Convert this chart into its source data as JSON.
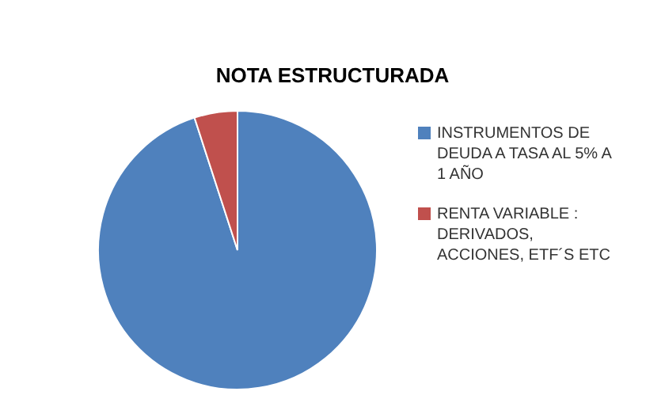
{
  "chart_data": {
    "type": "pie",
    "title": "NOTA ESTRUCTURADA",
    "categories": [
      "INSTRUMENTOS DE DEUDA A TASA AL 5% A 1 AÑO",
      "RENTA VARIABLE : DERIVADOS, ACCIONES, ETF´S ETC"
    ],
    "values": [
      95,
      5
    ],
    "colors": [
      "#4f81bd",
      "#c0504d"
    ],
    "legend": "right"
  }
}
